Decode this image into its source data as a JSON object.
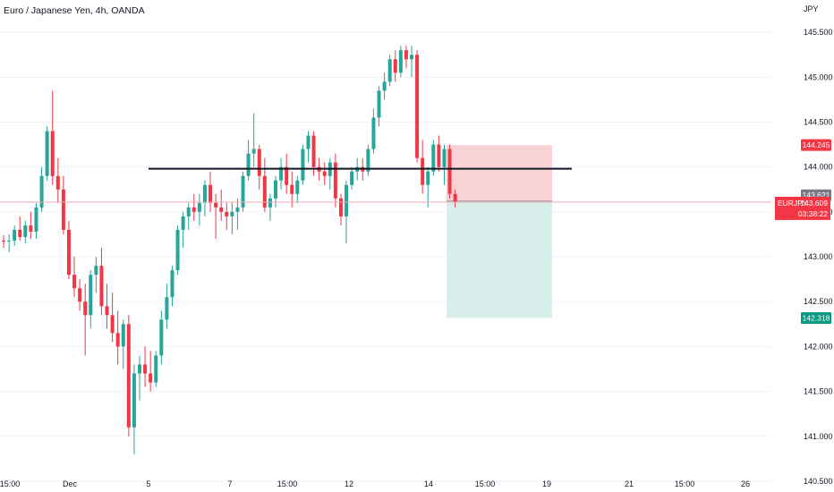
{
  "header": {
    "title": "Euro / Japanese Yen, 4h, OANDA"
  },
  "axis": {
    "currency": "JPY"
  },
  "colors": {
    "up": "#26a69a",
    "down": "#f23645",
    "up_dark": "#089981",
    "line": "#131722",
    "stop_zone": "#f9cbcf",
    "target_zone": "#d3ece8",
    "grey_badge": "#787b86"
  },
  "chart_data": {
    "type": "candlestick",
    "title": "Euro / Japanese Yen, 4h, OANDA",
    "ylabel": "JPY",
    "ylim": [
      140.38,
      145.86
    ],
    "y_ticks": [
      "145.500",
      "145.000",
      "144.500",
      "144.000",
      "143.500",
      "143.000",
      "142.500",
      "142.000",
      "141.500",
      "141.000",
      "140.500"
    ],
    "x_ticks": [
      "15:00",
      "Dec",
      "5",
      "7",
      "15:00",
      "12",
      "14",
      "15:00",
      "19",
      "21",
      "15:00",
      "26"
    ],
    "candles": [
      [
        143.18,
        143.24,
        143.1,
        143.17
      ],
      [
        143.17,
        143.25,
        143.05,
        143.18
      ],
      [
        143.18,
        143.35,
        143.12,
        143.3
      ],
      [
        143.3,
        143.45,
        143.18,
        143.22
      ],
      [
        143.22,
        143.4,
        143.15,
        143.35
      ],
      [
        143.35,
        143.5,
        143.2,
        143.28
      ],
      [
        143.28,
        143.6,
        143.2,
        143.55
      ],
      [
        143.55,
        144.0,
        143.5,
        143.9
      ],
      [
        143.9,
        144.45,
        143.85,
        144.4
      ],
      [
        144.4,
        144.85,
        143.8,
        143.9
      ],
      [
        143.9,
        144.1,
        143.6,
        143.75
      ],
      [
        143.75,
        143.9,
        143.25,
        143.3
      ],
      [
        143.3,
        143.4,
        142.75,
        142.8
      ],
      [
        142.8,
        143.0,
        142.55,
        142.65
      ],
      [
        142.65,
        142.75,
        142.4,
        142.5
      ],
      [
        142.5,
        142.7,
        141.9,
        142.35
      ],
      [
        142.35,
        142.85,
        142.2,
        142.8
      ],
      [
        142.8,
        143.0,
        142.6,
        142.9
      ],
      [
        142.9,
        143.1,
        142.35,
        142.45
      ],
      [
        142.45,
        142.7,
        142.2,
        142.35
      ],
      [
        142.35,
        142.6,
        142.05,
        142.15
      ],
      [
        142.15,
        142.4,
        141.8,
        142.0
      ],
      [
        142.0,
        142.3,
        141.75,
        142.25
      ],
      [
        142.25,
        142.35,
        141.0,
        141.1
      ],
      [
        141.1,
        141.8,
        140.8,
        141.7
      ],
      [
        141.7,
        141.9,
        141.4,
        141.8
      ],
      [
        141.8,
        142.0,
        141.55,
        141.7
      ],
      [
        141.7,
        141.95,
        141.5,
        141.6
      ],
      [
        141.6,
        141.95,
        141.55,
        141.9
      ],
      [
        141.9,
        142.4,
        141.8,
        142.3
      ],
      [
        142.3,
        142.7,
        142.2,
        142.55
      ],
      [
        142.55,
        142.9,
        142.45,
        142.85
      ],
      [
        142.85,
        143.35,
        142.8,
        143.3
      ],
      [
        143.3,
        143.5,
        143.1,
        143.45
      ],
      [
        143.45,
        143.6,
        143.3,
        143.55
      ],
      [
        143.55,
        143.7,
        143.4,
        143.5
      ],
      [
        143.5,
        143.7,
        143.35,
        143.6
      ],
      [
        143.6,
        143.85,
        143.45,
        143.8
      ],
      [
        143.8,
        143.95,
        143.5,
        143.6
      ],
      [
        143.6,
        143.7,
        143.2,
        143.55
      ],
      [
        143.55,
        143.75,
        143.4,
        143.5
      ],
      [
        143.5,
        143.6,
        143.3,
        143.45
      ],
      [
        143.45,
        143.6,
        143.25,
        143.5
      ],
      [
        143.5,
        143.65,
        143.3,
        143.55
      ],
      [
        143.55,
        143.95,
        143.5,
        143.9
      ],
      [
        143.9,
        144.3,
        143.85,
        144.15
      ],
      [
        144.15,
        144.6,
        144.0,
        144.2
      ],
      [
        144.2,
        144.25,
        143.75,
        143.9
      ],
      [
        143.9,
        144.1,
        143.5,
        143.55
      ],
      [
        143.55,
        143.7,
        143.4,
        143.65
      ],
      [
        143.65,
        143.9,
        143.55,
        143.85
      ],
      [
        143.85,
        144.1,
        143.75,
        144.0
      ],
      [
        144.0,
        144.15,
        143.7,
        143.8
      ],
      [
        143.8,
        143.95,
        143.55,
        143.7
      ],
      [
        143.7,
        143.9,
        143.6,
        143.85
      ],
      [
        143.85,
        144.25,
        143.8,
        144.2
      ],
      [
        144.2,
        144.4,
        144.05,
        144.35
      ],
      [
        144.35,
        144.4,
        143.9,
        144.0
      ],
      [
        144.0,
        144.1,
        143.85,
        143.95
      ],
      [
        143.95,
        144.05,
        143.8,
        143.9
      ],
      [
        143.9,
        144.1,
        143.75,
        144.05
      ],
      [
        144.05,
        144.15,
        143.55,
        143.65
      ],
      [
        143.65,
        143.7,
        143.35,
        143.45
      ],
      [
        143.45,
        143.85,
        143.15,
        143.8
      ],
      [
        143.8,
        144.0,
        143.75,
        143.95
      ],
      [
        143.95,
        144.1,
        143.85,
        144.0
      ],
      [
        144.0,
        144.1,
        143.85,
        143.95
      ],
      [
        143.95,
        144.25,
        143.9,
        144.2
      ],
      [
        144.2,
        144.65,
        144.15,
        144.55
      ],
      [
        144.55,
        144.9,
        144.45,
        144.85
      ],
      [
        144.85,
        145.05,
        144.75,
        144.95
      ],
      [
        144.95,
        145.25,
        144.9,
        145.2
      ],
      [
        145.2,
        145.3,
        144.95,
        145.05
      ],
      [
        145.05,
        145.35,
        145.0,
        145.3
      ],
      [
        145.3,
        145.35,
        145.1,
        145.2
      ],
      [
        145.2,
        145.35,
        145.0,
        145.25
      ],
      [
        145.25,
        145.3,
        144.05,
        144.1
      ],
      [
        144.1,
        144.3,
        143.7,
        143.8
      ],
      [
        143.8,
        144.0,
        143.55,
        143.95
      ],
      [
        143.95,
        144.3,
        143.9,
        144.25
      ],
      [
        144.25,
        144.35,
        143.95,
        144.0
      ],
      [
        144.0,
        144.25,
        143.8,
        144.2
      ],
      [
        144.2,
        144.25,
        143.65,
        143.7
      ],
      [
        143.7,
        143.75,
        143.55,
        143.609
      ]
    ],
    "annotations": {
      "horizontal_line": {
        "price": 143.98,
        "color": "#131722"
      },
      "position": {
        "entry": 143.621,
        "stop": 144.245,
        "target": 142.318
      },
      "current_price": {
        "symbol": "EURJPY",
        "price": "143.609",
        "countdown": "03:38:22"
      }
    },
    "price_labels": [
      {
        "text": "144.245",
        "price": 144.245,
        "kind": "stop"
      },
      {
        "text": "143.621",
        "price": 143.621,
        "kind": "entry"
      },
      {
        "text": "142.318",
        "price": 142.318,
        "kind": "target"
      }
    ]
  }
}
